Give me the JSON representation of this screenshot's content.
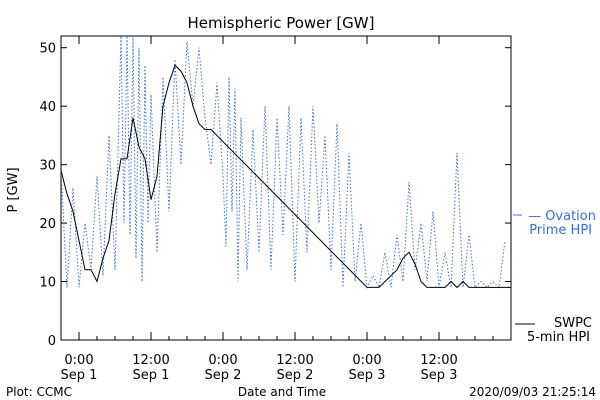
{
  "chart_data": {
    "type": "line",
    "title": "Hemispheric Power [GW]",
    "xlabel": "Date and Time",
    "ylabel": "P [GW]",
    "xlim": [
      "2020-09-01T00:00",
      "2020-09-04T00:00"
    ],
    "ylim": [
      0,
      52
    ],
    "y_ticks": [
      0,
      10,
      20,
      30,
      40,
      50
    ],
    "x_ticks": [
      {
        "time": "2020-09-01T00:00",
        "line1": "0:00",
        "line2": "Sep 1"
      },
      {
        "time": "2020-09-01T12:00",
        "line1": "12:00",
        "line2": "Sep 1"
      },
      {
        "time": "2020-09-02T00:00",
        "line1": "0:00",
        "line2": "Sep 2"
      },
      {
        "time": "2020-09-02T12:00",
        "line1": "12:00",
        "line2": "Sep 2"
      },
      {
        "time": "2020-09-03T00:00",
        "line1": "0:00",
        "line2": "Sep 3"
      },
      {
        "time": "2020-09-03T12:00",
        "line1": "12:00",
        "line2": "Sep 3"
      }
    ],
    "grid": false,
    "legend_position": "right",
    "series": [
      {
        "name": "Ovation Prime HPI",
        "label_line1": "— Ovation",
        "label_line2": "Prime HPI",
        "style": "dotted",
        "color": "#3b6fd4",
        "points": [
          [
            "2020-08-31T21:00",
            29
          ],
          [
            "2020-08-31T22:00",
            9
          ],
          [
            "2020-08-31T23:00",
            26
          ],
          [
            "2020-09-01T00:00",
            9
          ],
          [
            "2020-09-01T01:00",
            20
          ],
          [
            "2020-09-01T02:00",
            12
          ],
          [
            "2020-09-01T03:00",
            28
          ],
          [
            "2020-09-01T04:00",
            11
          ],
          [
            "2020-09-01T05:00",
            35
          ],
          [
            "2020-09-01T06:00",
            12
          ],
          [
            "2020-09-01T07:00",
            52
          ],
          [
            "2020-09-01T07:30",
            20
          ],
          [
            "2020-09-01T08:00",
            52
          ],
          [
            "2020-09-01T08:30",
            18
          ],
          [
            "2020-09-01T09:00",
            52
          ],
          [
            "2020-09-01T09:30",
            14
          ],
          [
            "2020-09-01T10:00",
            50
          ],
          [
            "2020-09-01T10:30",
            10
          ],
          [
            "2020-09-01T11:00",
            47
          ],
          [
            "2020-09-01T11:30",
            20
          ],
          [
            "2020-09-01T12:00",
            42
          ],
          [
            "2020-09-01T13:00",
            15
          ],
          [
            "2020-09-01T14:00",
            45
          ],
          [
            "2020-09-01T15:00",
            22
          ],
          [
            "2020-09-01T16:00",
            48
          ],
          [
            "2020-09-01T17:00",
            30
          ],
          [
            "2020-09-01T18:00",
            51
          ],
          [
            "2020-09-01T19:00",
            40
          ],
          [
            "2020-09-01T20:00",
            50
          ],
          [
            "2020-09-01T21:00",
            38
          ],
          [
            "2020-09-01T22:00",
            30
          ],
          [
            "2020-09-01T23:00",
            44
          ],
          [
            "2020-09-02T00:00",
            28
          ],
          [
            "2020-09-02T00:30",
            16
          ],
          [
            "2020-09-02T01:00",
            45
          ],
          [
            "2020-09-02T01:30",
            22
          ],
          [
            "2020-09-02T02:00",
            43
          ],
          [
            "2020-09-02T02:30",
            10
          ],
          [
            "2020-09-02T03:00",
            38
          ],
          [
            "2020-09-02T04:00",
            12
          ],
          [
            "2020-09-02T05:00",
            36
          ],
          [
            "2020-09-02T06:00",
            15
          ],
          [
            "2020-09-02T07:00",
            40
          ],
          [
            "2020-09-02T08:00",
            12
          ],
          [
            "2020-09-02T09:00",
            38
          ],
          [
            "2020-09-02T10:00",
            18
          ],
          [
            "2020-09-02T11:00",
            40
          ],
          [
            "2020-09-02T12:00",
            10
          ],
          [
            "2020-09-02T13:00",
            38
          ],
          [
            "2020-09-02T14:00",
            15
          ],
          [
            "2020-09-02T15:00",
            40
          ],
          [
            "2020-09-02T16:00",
            20
          ],
          [
            "2020-09-02T17:00",
            35
          ],
          [
            "2020-09-02T18:00",
            12
          ],
          [
            "2020-09-02T19:00",
            37
          ],
          [
            "2020-09-02T20:00",
            9
          ],
          [
            "2020-09-02T21:00",
            32
          ],
          [
            "2020-09-02T22:00",
            10
          ],
          [
            "2020-09-02T23:00",
            20
          ],
          [
            "2020-09-03T00:00",
            9
          ],
          [
            "2020-09-03T01:00",
            11
          ],
          [
            "2020-09-03T02:00",
            9
          ],
          [
            "2020-09-03T03:00",
            15
          ],
          [
            "2020-09-03T04:00",
            9
          ],
          [
            "2020-09-03T05:00",
            18
          ],
          [
            "2020-09-03T06:00",
            10
          ],
          [
            "2020-09-03T07:00",
            27
          ],
          [
            "2020-09-03T08:00",
            12
          ],
          [
            "2020-09-03T09:00",
            20
          ],
          [
            "2020-09-03T10:00",
            10
          ],
          [
            "2020-09-03T11:00",
            22
          ],
          [
            "2020-09-03T12:00",
            9
          ],
          [
            "2020-09-03T13:00",
            15
          ],
          [
            "2020-09-03T14:00",
            9
          ],
          [
            "2020-09-03T15:00",
            32
          ],
          [
            "2020-09-03T16:00",
            9
          ],
          [
            "2020-09-03T17:00",
            18
          ],
          [
            "2020-09-03T18:00",
            9
          ],
          [
            "2020-09-03T19:00",
            10
          ],
          [
            "2020-09-03T20:00",
            9
          ],
          [
            "2020-09-03T21:00",
            10
          ],
          [
            "2020-09-03T22:00",
            9
          ],
          [
            "2020-09-03T23:00",
            17
          ]
        ]
      },
      {
        "name": "SWPC 5-min HPI",
        "label_line1": "SWPC",
        "label_line2": "5-min HPI",
        "style": "solid",
        "color": "#000000",
        "points": [
          [
            "2020-08-31T21:00",
            29
          ],
          [
            "2020-08-31T22:00",
            25
          ],
          [
            "2020-08-31T23:00",
            22
          ],
          [
            "2020-09-01T00:00",
            17
          ],
          [
            "2020-09-01T01:00",
            12
          ],
          [
            "2020-09-01T02:00",
            12
          ],
          [
            "2020-09-01T03:00",
            10
          ],
          [
            "2020-09-01T04:00",
            14
          ],
          [
            "2020-09-01T05:00",
            17
          ],
          [
            "2020-09-01T06:00",
            25
          ],
          [
            "2020-09-01T07:00",
            31
          ],
          [
            "2020-09-01T08:00",
            31
          ],
          [
            "2020-09-01T09:00",
            38
          ],
          [
            "2020-09-01T10:00",
            33
          ],
          [
            "2020-09-01T11:00",
            31
          ],
          [
            "2020-09-01T12:00",
            24
          ],
          [
            "2020-09-01T13:00",
            28
          ],
          [
            "2020-09-01T14:00",
            40
          ],
          [
            "2020-09-01T15:00",
            44
          ],
          [
            "2020-09-01T16:00",
            47
          ],
          [
            "2020-09-01T17:00",
            46
          ],
          [
            "2020-09-01T18:00",
            44
          ],
          [
            "2020-09-01T19:00",
            40
          ],
          [
            "2020-09-01T20:00",
            37
          ],
          [
            "2020-09-01T21:00",
            36
          ],
          [
            "2020-09-01T22:00",
            36
          ],
          [
            "2020-09-03T00:00",
            9
          ],
          [
            "2020-09-03T02:00",
            9
          ],
          [
            "2020-09-03T03:00",
            10
          ],
          [
            "2020-09-03T04:00",
            11
          ],
          [
            "2020-09-03T05:00",
            12
          ],
          [
            "2020-09-03T06:00",
            14
          ],
          [
            "2020-09-03T07:00",
            15
          ],
          [
            "2020-09-03T08:00",
            13
          ],
          [
            "2020-09-03T09:00",
            10
          ],
          [
            "2020-09-03T10:00",
            9
          ],
          [
            "2020-09-03T13:00",
            9
          ],
          [
            "2020-09-03T14:00",
            10
          ],
          [
            "2020-09-03T15:00",
            9
          ],
          [
            "2020-09-03T16:00",
            10
          ],
          [
            "2020-09-03T17:00",
            9
          ],
          [
            "2020-09-04T00:00",
            9
          ]
        ]
      }
    ]
  },
  "footer": {
    "left": "Plot: CCMC",
    "timestamp": "2020/09/03 21:25:14"
  }
}
